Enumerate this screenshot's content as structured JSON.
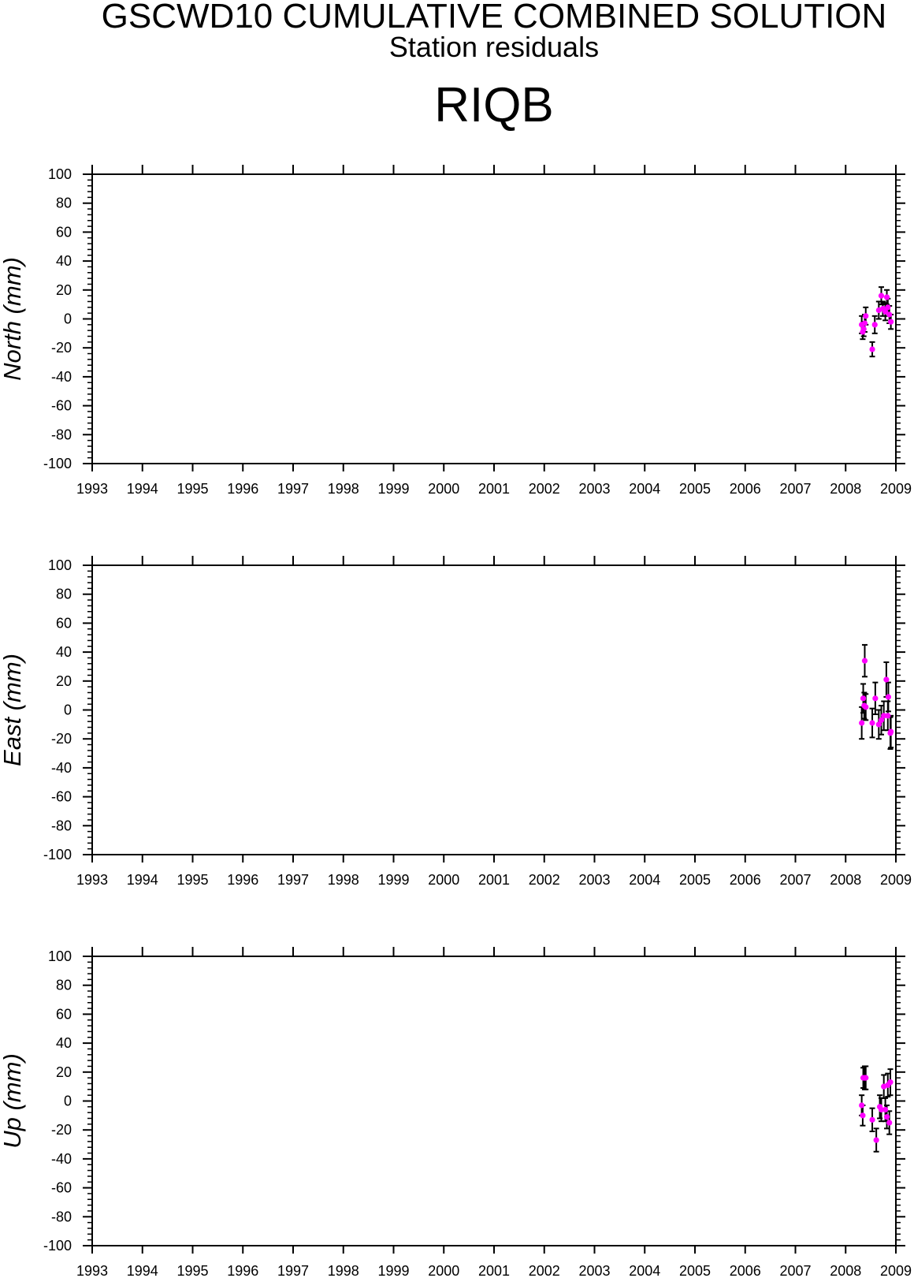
{
  "figure": {
    "title": "GSCWD10 CUMULATIVE COMBINED SOLUTION",
    "subtitle": "Station residuals",
    "station": "RIQB"
  },
  "colors": {
    "background": "#ffffff",
    "axis": "#000000",
    "error_bar": "#000000",
    "marker": "#ff00ff"
  },
  "chart_data": [
    {
      "type": "scatter",
      "ylabel": "North (mm)",
      "xlim": [
        1993,
        2009
      ],
      "ylim": [
        -100,
        100
      ],
      "xticks": [
        1993,
        1994,
        1995,
        1996,
        1997,
        1998,
        1999,
        2000,
        2001,
        2002,
        2003,
        2004,
        2005,
        2006,
        2007,
        2008,
        2009
      ],
      "yticks": [
        100,
        80,
        60,
        40,
        20,
        0,
        -20,
        -40,
        -60,
        -80,
        -100
      ],
      "yminor_step": 4,
      "grid": false,
      "series": [
        {
          "x": [
            2008.32,
            2008.34,
            2008.36,
            2008.38,
            2008.4,
            2008.53,
            2008.58,
            2008.66,
            2008.71,
            2008.74,
            2008.79,
            2008.82,
            2008.84,
            2008.87,
            2008.9
          ],
          "y": [
            -4,
            -9,
            -7,
            -3,
            2,
            -21,
            -4,
            6,
            16,
            7,
            5,
            15,
            8,
            3,
            -2
          ],
          "error": [
            6,
            5,
            5,
            6,
            6,
            5,
            6,
            6,
            6,
            5,
            6,
            5,
            6,
            6,
            5
          ]
        }
      ]
    },
    {
      "type": "scatter",
      "ylabel": "East (mm)",
      "xlim": [
        1993,
        2009
      ],
      "ylim": [
        -100,
        100
      ],
      "xticks": [
        1993,
        1994,
        1995,
        1996,
        1997,
        1998,
        1999,
        2000,
        2001,
        2002,
        2003,
        2004,
        2005,
        2006,
        2007,
        2008,
        2009
      ],
      "yticks": [
        100,
        80,
        60,
        40,
        20,
        0,
        -20,
        -40,
        -60,
        -80,
        -100
      ],
      "yminor_step": 4,
      "grid": false,
      "series": [
        {
          "x": [
            2008.32,
            2008.35,
            2008.37,
            2008.38,
            2008.4,
            2008.53,
            2008.59,
            2008.66,
            2008.71,
            2008.76,
            2008.81,
            2008.84,
            2008.85,
            2008.89,
            2008.9
          ],
          "y": [
            -9,
            8,
            3,
            34,
            2,
            -9,
            8,
            -10,
            -7,
            -4,
            21,
            -4,
            9,
            -16,
            -15
          ],
          "error": [
            11,
            10,
            9,
            11,
            9,
            10,
            11,
            10,
            10,
            10,
            12,
            10,
            10,
            11,
            11
          ]
        }
      ]
    },
    {
      "type": "scatter",
      "ylabel": "Up (mm)",
      "xlim": [
        1993,
        2009
      ],
      "ylim": [
        -100,
        100
      ],
      "xticks": [
        1993,
        1994,
        1995,
        1996,
        1997,
        1998,
        1999,
        2000,
        2001,
        2002,
        2003,
        2004,
        2005,
        2006,
        2007,
        2008,
        2009
      ],
      "yticks": [
        100,
        80,
        60,
        40,
        20,
        0,
        -20,
        -40,
        -60,
        -80,
        -100
      ],
      "yminor_step": 4,
      "grid": false,
      "series": [
        {
          "x": [
            2008.32,
            2008.34,
            2008.35,
            2008.38,
            2008.4,
            2008.53,
            2008.61,
            2008.68,
            2008.71,
            2008.76,
            2008.79,
            2008.82,
            2008.84,
            2008.87,
            2008.89
          ],
          "y": [
            -3,
            -10,
            16,
            16,
            16,
            -13,
            -27,
            -4,
            -6,
            10,
            -6,
            -11,
            11,
            -15,
            13
          ],
          "error": [
            7,
            7,
            7,
            8,
            8,
            8,
            8,
            8,
            8,
            8,
            8,
            8,
            8,
            8,
            9
          ]
        }
      ]
    }
  ]
}
